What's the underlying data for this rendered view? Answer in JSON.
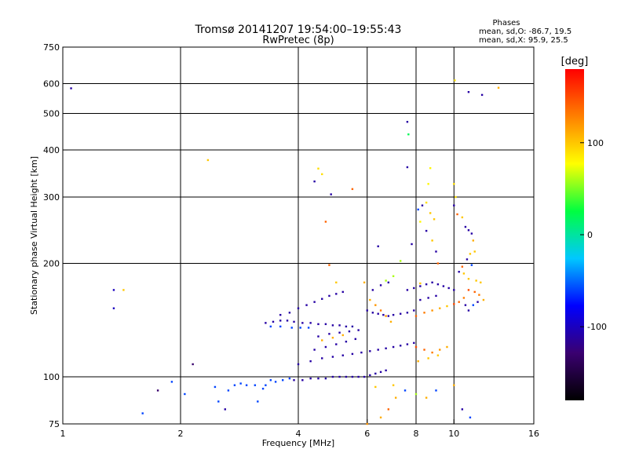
{
  "chart_data": {
    "type": "scatter",
    "title": "Tromsø 20141207 19:54:00–19:55:43",
    "subtitle": "RwPretec (8p)",
    "xlabel": "Frequency [MHz]",
    "ylabel": "Stationary phase Virtual Height [km]",
    "x_scale": "log",
    "y_scale": "log",
    "xlim": [
      1,
      16
    ],
    "ylim": [
      75,
      750
    ],
    "x_ticks": [
      1,
      2,
      4,
      6,
      8,
      10,
      16
    ],
    "y_ticks": [
      75,
      100,
      200,
      300,
      400,
      500,
      600,
      750
    ],
    "grid_x": [
      2,
      4,
      6,
      8,
      10
    ],
    "grid_y": [
      100,
      200,
      300,
      400,
      500,
      600
    ],
    "stats": {
      "heading": "Phases",
      "line_o": "mean, sd,O: -86.7, 19.5",
      "line_x": "mean, sd,X:  95.9, 25.5"
    },
    "colorbar": {
      "label": "[deg]",
      "min": -180,
      "max": 180,
      "ticks": [
        100,
        0,
        -100
      ],
      "colors": [
        "#000000",
        "#3a0070",
        "#0000ff",
        "#00c8ff",
        "#00ff40",
        "#ffff00",
        "#ff8000",
        "#ff0000"
      ]
    },
    "series": [
      {
        "points": [
          [
            1.05,
            583,
            -110
          ],
          [
            1.35,
            170,
            -100
          ],
          [
            1.35,
            152,
            -100
          ],
          [
            1.43,
            170,
            100
          ],
          [
            1.6,
            80,
            -60
          ],
          [
            1.75,
            92,
            -130
          ],
          [
            1.9,
            97,
            -60
          ],
          [
            2.05,
            90,
            -60
          ],
          [
            2.15,
            108,
            -130
          ],
          [
            2.35,
            376,
            100
          ],
          [
            2.45,
            94,
            -60
          ],
          [
            2.5,
            86,
            -60
          ],
          [
            2.6,
            82,
            -110
          ],
          [
            2.65,
            92,
            -60
          ],
          [
            2.75,
            95,
            -60
          ],
          [
            2.85,
            96,
            -60
          ],
          [
            2.95,
            95,
            -60
          ],
          [
            3.1,
            95,
            -60
          ],
          [
            3.15,
            86,
            -60
          ],
          [
            3.25,
            93,
            -60
          ],
          [
            3.3,
            95,
            -60
          ],
          [
            3.4,
            98,
            -60
          ],
          [
            3.5,
            97,
            -60
          ],
          [
            3.65,
            98,
            -60
          ],
          [
            3.8,
            99,
            -60
          ],
          [
            3.3,
            139,
            -110
          ],
          [
            3.45,
            140,
            -110
          ],
          [
            3.6,
            141,
            -110
          ],
          [
            3.75,
            141,
            -110
          ],
          [
            3.9,
            140,
            -110
          ],
          [
            4.1,
            139,
            -110
          ],
          [
            4.3,
            139,
            -110
          ],
          [
            4.5,
            138,
            -110
          ],
          [
            4.7,
            138,
            -110
          ],
          [
            4.9,
            137,
            -110
          ],
          [
            5.1,
            137,
            -110
          ],
          [
            5.3,
            136,
            -110
          ],
          [
            5.5,
            136,
            -110
          ],
          [
            3.4,
            136,
            -60
          ],
          [
            3.6,
            136,
            -60
          ],
          [
            3.85,
            135,
            -60
          ],
          [
            4.05,
            135,
            -60
          ],
          [
            4.25,
            135,
            -60
          ],
          [
            3.6,
            146,
            -110
          ],
          [
            3.8,
            148,
            -110
          ],
          [
            4.0,
            152,
            -110
          ],
          [
            4.2,
            155,
            -110
          ],
          [
            4.4,
            158,
            -110
          ],
          [
            4.6,
            161,
            -110
          ],
          [
            4.8,
            164,
            -110
          ],
          [
            5.0,
            166,
            -110
          ],
          [
            5.2,
            168,
            -110
          ],
          [
            3.9,
            98,
            -110
          ],
          [
            4.1,
            98,
            -110
          ],
          [
            4.3,
            99,
            -110
          ],
          [
            4.5,
            99,
            -110
          ],
          [
            4.7,
            99,
            -110
          ],
          [
            4.9,
            100,
            -110
          ],
          [
            5.1,
            100,
            -110
          ],
          [
            5.3,
            100,
            -110
          ],
          [
            5.5,
            100,
            -110
          ],
          [
            5.7,
            100,
            -110
          ],
          [
            5.9,
            100,
            -110
          ],
          [
            6.1,
            101,
            -110
          ],
          [
            6.3,
            102,
            -110
          ],
          [
            6.5,
            103,
            -110
          ],
          [
            6.7,
            104,
            -110
          ],
          [
            4.0,
            108,
            -110
          ],
          [
            4.3,
            110,
            -110
          ],
          [
            4.6,
            112,
            -110
          ],
          [
            4.9,
            113,
            -110
          ],
          [
            5.2,
            114,
            -110
          ],
          [
            5.5,
            115,
            -110
          ],
          [
            5.8,
            116,
            -110
          ],
          [
            6.1,
            117,
            -110
          ],
          [
            6.4,
            118,
            -110
          ],
          [
            6.7,
            119,
            -110
          ],
          [
            7.0,
            120,
            -110
          ],
          [
            7.3,
            121,
            -110
          ],
          [
            7.6,
            122,
            -110
          ],
          [
            7.9,
            123,
            -110
          ],
          [
            4.4,
            118,
            -110
          ],
          [
            4.7,
            120,
            -110
          ],
          [
            5.0,
            122,
            -110
          ],
          [
            5.3,
            124,
            -110
          ],
          [
            5.6,
            126,
            -110
          ],
          [
            4.5,
            128,
            -110
          ],
          [
            4.8,
            130,
            -110
          ],
          [
            5.1,
            131,
            -110
          ],
          [
            5.4,
            132,
            -110
          ],
          [
            5.7,
            133,
            -110
          ],
          [
            4.6,
            125,
            110
          ],
          [
            4.9,
            127,
            110
          ],
          [
            5.2,
            129,
            110
          ],
          [
            6.0,
            150,
            -110
          ],
          [
            6.2,
            148,
            -110
          ],
          [
            6.4,
            147,
            -110
          ],
          [
            6.6,
            146,
            -110
          ],
          [
            6.8,
            145,
            -110
          ],
          [
            7.0,
            146,
            -110
          ],
          [
            7.3,
            147,
            -110
          ],
          [
            7.6,
            148,
            -110
          ],
          [
            7.9,
            150,
            -110
          ],
          [
            6.1,
            160,
            110
          ],
          [
            6.3,
            155,
            120
          ],
          [
            6.5,
            150,
            130
          ],
          [
            6.7,
            145,
            120
          ],
          [
            6.9,
            140,
            110
          ],
          [
            6.2,
            170,
            -110
          ],
          [
            6.5,
            175,
            -110
          ],
          [
            6.8,
            178,
            -110
          ],
          [
            7.6,
            170,
            -110
          ],
          [
            7.9,
            172,
            -110
          ],
          [
            8.2,
            174,
            -110
          ],
          [
            8.5,
            176,
            -110
          ],
          [
            8.8,
            178,
            -110
          ],
          [
            9.1,
            176,
            -110
          ],
          [
            9.4,
            174,
            -110
          ],
          [
            9.7,
            172,
            -110
          ],
          [
            10.0,
            170,
            -110
          ],
          [
            8.0,
            120,
            150
          ],
          [
            8.4,
            118,
            140
          ],
          [
            8.8,
            116,
            130
          ],
          [
            9.2,
            118,
            120
          ],
          [
            9.6,
            120,
            110
          ],
          [
            8.1,
            110,
            110
          ],
          [
            8.6,
            112,
            100
          ],
          [
            9.1,
            114,
            100
          ],
          [
            8.0,
            145,
            140
          ],
          [
            8.4,
            148,
            130
          ],
          [
            8.8,
            150,
            120
          ],
          [
            9.2,
            152,
            110
          ],
          [
            9.6,
            154,
            100
          ],
          [
            10.0,
            156,
            150
          ],
          [
            10.3,
            158,
            140
          ],
          [
            10.6,
            162,
            130
          ],
          [
            8.2,
            160,
            -110
          ],
          [
            8.6,
            162,
            -110
          ],
          [
            9.0,
            164,
            -110
          ],
          [
            7.6,
            475,
            -110
          ],
          [
            7.65,
            440,
            20
          ],
          [
            7.6,
            360,
            -110
          ],
          [
            7.8,
            225,
            -110
          ],
          [
            6.4,
            222,
            -110
          ],
          [
            4.4,
            330,
            -110
          ],
          [
            4.5,
            357,
            90
          ],
          [
            4.6,
            345,
            90
          ],
          [
            4.85,
            305,
            -110
          ],
          [
            5.5,
            315,
            140
          ],
          [
            4.7,
            258,
            140
          ],
          [
            4.8,
            198,
            140
          ],
          [
            5.0,
            178,
            100
          ],
          [
            5.9,
            178,
            110
          ],
          [
            6.7,
            180,
            60
          ],
          [
            7.0,
            185,
            60
          ],
          [
            8.2,
            177,
            100
          ],
          [
            7.3,
            203,
            60
          ],
          [
            8.7,
            358,
            80
          ],
          [
            8.6,
            325,
            80
          ],
          [
            8.5,
            290,
            90
          ],
          [
            8.7,
            272,
            100
          ],
          [
            8.9,
            262,
            100
          ],
          [
            8.3,
            285,
            -110
          ],
          [
            8.1,
            278,
            -60
          ],
          [
            8.2,
            258,
            80
          ],
          [
            8.5,
            244,
            -110
          ],
          [
            8.8,
            230,
            100
          ],
          [
            9.0,
            215,
            -110
          ],
          [
            9.1,
            200,
            140
          ],
          [
            10.0,
            325,
            90
          ],
          [
            10.1,
            300,
            90
          ],
          [
            10.0,
            285,
            -110
          ],
          [
            10.2,
            270,
            140
          ],
          [
            10.5,
            265,
            100
          ],
          [
            10.7,
            250,
            -110
          ],
          [
            10.9,
            245,
            -110
          ],
          [
            11.1,
            240,
            -110
          ],
          [
            11.2,
            230,
            110
          ],
          [
            11.3,
            215,
            100
          ],
          [
            11.0,
            212,
            100
          ],
          [
            10.8,
            205,
            -110
          ],
          [
            11.1,
            198,
            -60
          ],
          [
            10.6,
            188,
            100
          ],
          [
            10.9,
            182,
            100
          ],
          [
            11.4,
            180,
            100
          ],
          [
            11.7,
            178,
            100
          ],
          [
            10.3,
            190,
            -110
          ],
          [
            10.5,
            196,
            140
          ],
          [
            10.9,
            170,
            150
          ],
          [
            11.3,
            168,
            140
          ],
          [
            11.6,
            165,
            130
          ],
          [
            11.9,
            160,
            110
          ],
          [
            10.7,
            155,
            -110
          ],
          [
            10.9,
            150,
            -110
          ],
          [
            11.2,
            155,
            -60
          ],
          [
            11.5,
            158,
            -110
          ],
          [
            10.05,
            612,
            90
          ],
          [
            10.9,
            570,
            -110
          ],
          [
            11.8,
            560,
            -110
          ],
          [
            13.0,
            585,
            110
          ],
          [
            6.0,
            75,
            120
          ],
          [
            6.5,
            78,
            110
          ],
          [
            6.8,
            82,
            140
          ],
          [
            7.1,
            88,
            110
          ],
          [
            7.5,
            92,
            -60
          ],
          [
            8.0,
            90,
            60
          ],
          [
            8.5,
            88,
            110
          ],
          [
            9.0,
            92,
            -60
          ],
          [
            10.0,
            95,
            110
          ],
          [
            10.5,
            82,
            -110
          ],
          [
            11.0,
            78,
            -60
          ],
          [
            6.3,
            94,
            100
          ],
          [
            7.0,
            95,
            100
          ]
        ]
      }
    ]
  }
}
